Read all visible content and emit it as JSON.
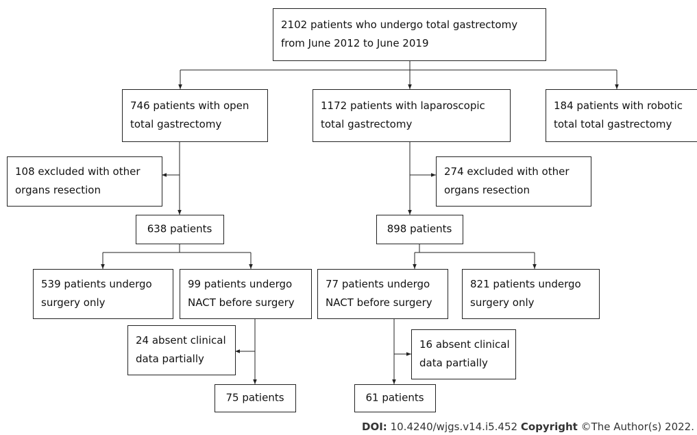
{
  "nodes": [
    {
      "lines": [
        "2102 patients who undergo total gastrectomy",
        "from June 2012 to June 2019"
      ]
    },
    {
      "lines": [
        "746 patients with open",
        "total gastrectomy"
      ]
    },
    {
      "lines": [
        "1172 patients with laparoscopic",
        "total gastrectomy"
      ]
    },
    {
      "lines": [
        "184 patients with robotic",
        "total total gastrectomy"
      ]
    },
    {
      "lines": [
        "108 excluded with other",
        "organs resection"
      ]
    },
    {
      "lines": [
        "274 excluded with other",
        "organs resection"
      ]
    },
    {
      "lines": [
        "638 patients"
      ]
    },
    {
      "lines": [
        "898 patients"
      ]
    },
    {
      "lines": [
        "539 patients undergo",
        "surgery only"
      ]
    },
    {
      "lines": [
        "99 patients undergo",
        "NACT before surgery"
      ]
    },
    {
      "lines": [
        "77 patients undergo",
        "NACT before surgery"
      ]
    },
    {
      "lines": [
        "821 patients undergo",
        "surgery only"
      ]
    },
    {
      "lines": [
        "24 absent clinical",
        "data partially"
      ]
    },
    {
      "lines": [
        "16 absent clinical",
        "data partially"
      ]
    },
    {
      "lines": [
        "75 patients"
      ]
    },
    {
      "lines": [
        "61 patients"
      ]
    }
  ],
  "footer": {
    "doi_label": "DOI:",
    "doi": "10.4240/wjgs.v14.i5.452",
    "copyright_label": "Copyright",
    "copyright": "©The Author(s) 2022."
  }
}
